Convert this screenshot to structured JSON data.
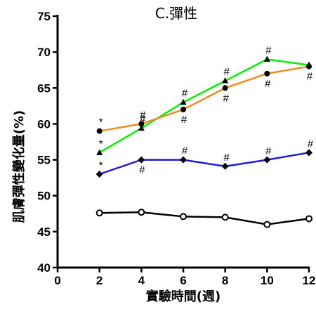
{
  "chart_data": {
    "type": "line",
    "title": "C.彈性",
    "xlabel": "實驗時間(週)",
    "ylabel": "肌膚彈性變化量(%)",
    "xlim": [
      0,
      12
    ],
    "ylim": [
      40,
      75
    ],
    "x_ticks": [
      0,
      2,
      4,
      6,
      8,
      10,
      12
    ],
    "y_ticks": [
      40,
      45,
      50,
      55,
      60,
      65,
      70,
      75
    ],
    "grid": false,
    "legend": "none",
    "series": [
      {
        "color": "#00ee00",
        "marker": "triangle",
        "x": [
          2,
          4,
          6,
          8,
          10,
          12
        ],
        "y": [
          56,
          59.4,
          63,
          66,
          69,
          68.2
        ],
        "above": [
          "*",
          "#",
          "#",
          "#",
          "#",
          ""
        ],
        "below": [
          "",
          "",
          "",
          "",
          "",
          ""
        ]
      },
      {
        "color": "#f08c1e",
        "marker": "circle",
        "x": [
          2,
          4,
          6,
          8,
          10,
          12
        ],
        "y": [
          59,
          60,
          62,
          65,
          67,
          68
        ],
        "above": [
          "*",
          "#",
          "",
          "",
          "",
          ""
        ],
        "below": [
          "",
          "",
          "#",
          "#",
          "#",
          "#"
        ]
      },
      {
        "color": "#1c1ce0",
        "marker": "diamond",
        "x": [
          2,
          4,
          6,
          8,
          10,
          12
        ],
        "y": [
          53,
          55,
          55,
          54.1,
          55,
          56
        ],
        "above": [
          "*",
          "",
          "#",
          "#",
          "#",
          "#"
        ],
        "below": [
          "",
          "#",
          "",
          "",
          "",
          ""
        ]
      },
      {
        "color": "#000000",
        "marker": "open-circle",
        "x": [
          2,
          4,
          6,
          8,
          10,
          12
        ],
        "y": [
          47.6,
          47.7,
          47.1,
          47,
          46,
          46.8
        ],
        "above": [
          "",
          "",
          "",
          "",
          "",
          ""
        ],
        "below": [
          "",
          "",
          "",
          "",
          "",
          ""
        ]
      }
    ]
  }
}
